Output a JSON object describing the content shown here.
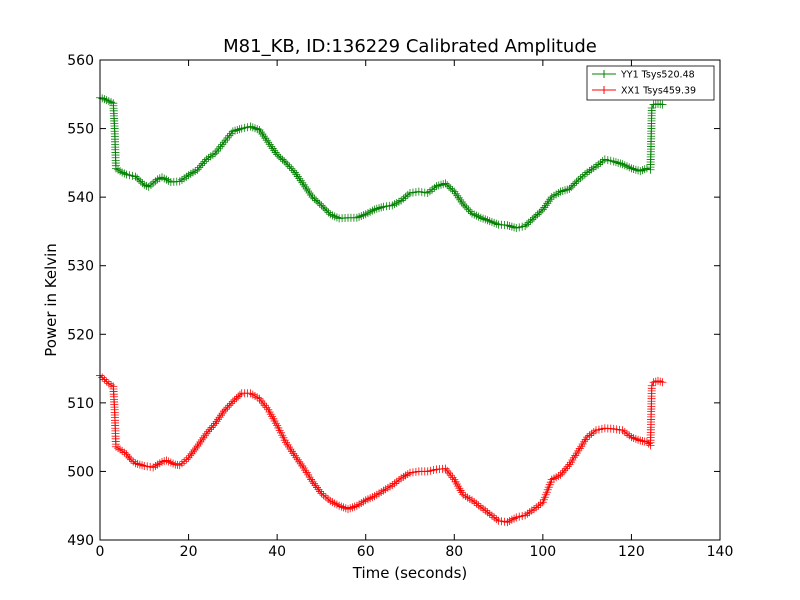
{
  "chart_data": {
    "type": "line",
    "title": "M81_KB, ID:136229 Calibrated Amplitude",
    "xlabel": "Time (seconds)",
    "ylabel": "Power in Kelvin",
    "xlim": [
      0,
      140
    ],
    "ylim": [
      490,
      560
    ],
    "xticks": [
      0,
      20,
      40,
      60,
      80,
      100,
      120,
      140
    ],
    "yticks": [
      490,
      500,
      510,
      520,
      530,
      540,
      550,
      560
    ],
    "grid": false,
    "legend_position": "top-right",
    "marker": "+",
    "series": [
      {
        "name": "YY1 Tsys520.48",
        "color": "#008000",
        "points": [
          [
            0,
            554.5
          ],
          [
            1,
            554.3
          ],
          [
            2,
            554.0
          ],
          [
            3,
            553.7
          ],
          [
            3.3,
            550.0
          ],
          [
            3.6,
            544.2
          ],
          [
            5,
            543.6
          ],
          [
            6,
            543.3
          ],
          [
            8,
            543.0
          ],
          [
            10,
            541.8
          ],
          [
            11,
            541.5
          ],
          [
            13,
            542.6
          ],
          [
            14,
            542.9
          ],
          [
            16,
            542.2
          ],
          [
            18,
            542.3
          ],
          [
            20,
            543.2
          ],
          [
            22,
            544.0
          ],
          [
            24,
            545.5
          ],
          [
            26,
            546.4
          ],
          [
            28,
            548.0
          ],
          [
            30,
            549.6
          ],
          [
            32,
            550.0
          ],
          [
            34,
            550.3
          ],
          [
            36,
            549.8
          ],
          [
            38,
            548.0
          ],
          [
            40,
            546.2
          ],
          [
            42,
            545.0
          ],
          [
            44,
            543.6
          ],
          [
            46,
            541.8
          ],
          [
            48,
            540.0
          ],
          [
            50,
            538.8
          ],
          [
            52,
            537.5
          ],
          [
            54,
            536.9
          ],
          [
            56,
            537.0
          ],
          [
            58,
            537.0
          ],
          [
            60,
            537.5
          ],
          [
            62,
            538.2
          ],
          [
            64,
            538.6
          ],
          [
            66,
            538.8
          ],
          [
            68,
            539.5
          ],
          [
            70,
            540.6
          ],
          [
            72,
            540.8
          ],
          [
            74,
            540.6
          ],
          [
            76,
            541.6
          ],
          [
            78,
            542.0
          ],
          [
            80,
            540.8
          ],
          [
            82,
            539.0
          ],
          [
            84,
            537.6
          ],
          [
            86,
            537.0
          ],
          [
            88,
            536.5
          ],
          [
            90,
            536.0
          ],
          [
            92,
            535.9
          ],
          [
            94,
            535.5
          ],
          [
            96,
            535.8
          ],
          [
            98,
            537.0
          ],
          [
            100,
            538.2
          ],
          [
            102,
            540.0
          ],
          [
            104,
            540.8
          ],
          [
            106,
            541.2
          ],
          [
            108,
            542.5
          ],
          [
            110,
            543.6
          ],
          [
            112,
            544.5
          ],
          [
            114,
            545.5
          ],
          [
            116,
            545.2
          ],
          [
            118,
            544.8
          ],
          [
            120,
            544.2
          ],
          [
            122,
            543.8
          ],
          [
            123.5,
            544.2
          ],
          [
            124.3,
            544.0
          ],
          [
            124.6,
            553.0
          ],
          [
            125,
            553.5
          ],
          [
            126,
            553.6
          ],
          [
            127,
            553.5
          ]
        ]
      },
      {
        "name": "XX1 Tsys459.39",
        "color": "#ff0000",
        "points": [
          [
            0,
            514.0
          ],
          [
            1,
            513.4
          ],
          [
            2,
            512.8
          ],
          [
            3,
            512.4
          ],
          [
            3.3,
            509.0
          ],
          [
            3.6,
            503.6
          ],
          [
            5,
            503.0
          ],
          [
            6,
            502.5
          ],
          [
            7,
            501.7
          ],
          [
            8,
            501.2
          ],
          [
            10,
            500.8
          ],
          [
            12,
            500.6
          ],
          [
            14,
            501.4
          ],
          [
            15,
            501.6
          ],
          [
            17,
            501.0
          ],
          [
            18,
            500.9
          ],
          [
            20,
            502.0
          ],
          [
            22,
            503.7
          ],
          [
            24,
            505.5
          ],
          [
            26,
            507.0
          ],
          [
            28,
            508.8
          ],
          [
            30,
            510.2
          ],
          [
            32,
            511.4
          ],
          [
            34,
            511.4
          ],
          [
            36,
            510.6
          ],
          [
            38,
            509.0
          ],
          [
            40,
            506.7
          ],
          [
            42,
            504.2
          ],
          [
            44,
            502.3
          ],
          [
            46,
            500.5
          ],
          [
            48,
            498.5
          ],
          [
            50,
            496.8
          ],
          [
            52,
            495.7
          ],
          [
            54,
            495.0
          ],
          [
            56,
            494.5
          ],
          [
            58,
            495.0
          ],
          [
            60,
            495.8
          ],
          [
            62,
            496.4
          ],
          [
            64,
            497.2
          ],
          [
            66,
            498.0
          ],
          [
            68,
            499.0
          ],
          [
            70,
            499.8
          ],
          [
            72,
            500.0
          ],
          [
            74,
            500.0
          ],
          [
            76,
            500.3
          ],
          [
            78,
            500.4
          ],
          [
            80,
            498.8
          ],
          [
            82,
            496.6
          ],
          [
            84,
            495.8
          ],
          [
            86,
            494.8
          ],
          [
            88,
            493.8
          ],
          [
            90,
            492.8
          ],
          [
            92,
            492.6
          ],
          [
            94,
            493.3
          ],
          [
            96,
            493.6
          ],
          [
            98,
            494.5
          ],
          [
            100,
            495.5
          ],
          [
            102,
            498.8
          ],
          [
            104,
            499.5
          ],
          [
            106,
            501.0
          ],
          [
            108,
            503.0
          ],
          [
            110,
            505.0
          ],
          [
            112,
            506.0
          ],
          [
            114,
            506.3
          ],
          [
            116,
            506.2
          ],
          [
            118,
            506.0
          ],
          [
            120,
            505.0
          ],
          [
            122,
            504.5
          ],
          [
            123.5,
            504.3
          ],
          [
            124.3,
            503.8
          ],
          [
            124.6,
            512.5
          ],
          [
            125,
            513.0
          ],
          [
            126,
            513.2
          ],
          [
            127,
            513.0
          ]
        ]
      }
    ]
  }
}
